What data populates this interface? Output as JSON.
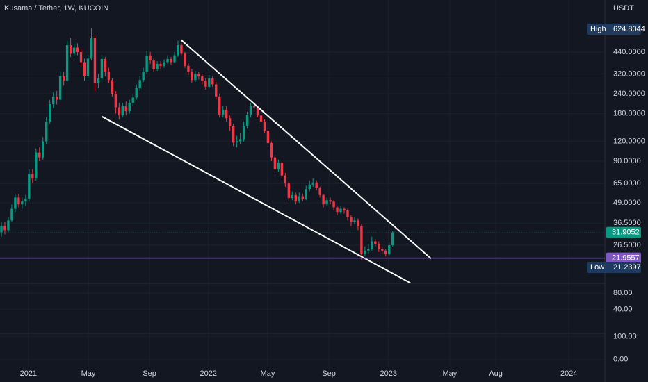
{
  "chart_data": {
    "type": "candlestick",
    "title": "Kusama / Tether, 1W, KUCOIN",
    "currency": "USDT",
    "log_scale": true,
    "grid": true,
    "up_color": "#089981",
    "down_color": "#f23645",
    "open": [
      32,
      35,
      33,
      38,
      45,
      53,
      48,
      50,
      52,
      75,
      70,
      102,
      95,
      120,
      160,
      206,
      230,
      220,
      309,
      290,
      487,
      430,
      470,
      440,
      380,
      309,
      400,
      539,
      279,
      300,
      398,
      330,
      293,
      240,
      197,
      175,
      200,
      186,
      210,
      227,
      260,
      293,
      330,
      419,
      390,
      342,
      370,
      360,
      380,
      398,
      380,
      420,
      487,
      430,
      360,
      330,
      293,
      320,
      309,
      290,
      266,
      300,
      275,
      230,
      177,
      190,
      168,
      150,
      118,
      120,
      124,
      150,
      177,
      200,
      197,
      175,
      160,
      140,
      117,
      95,
      80,
      88,
      73,
      65,
      52.7,
      55,
      50,
      54,
      52,
      60,
      64,
      66,
      61,
      55,
      48,
      51,
      50,
      46,
      43,
      45,
      44,
      40,
      37,
      38,
      35,
      23.2,
      24.5,
      25,
      28,
      27,
      25,
      24.5,
      23.2,
      26.5
    ],
    "high": [
      37,
      37,
      40,
      48,
      56,
      56,
      53,
      55,
      80,
      80,
      108,
      110,
      128,
      170,
      220,
      245,
      250,
      330,
      330,
      520,
      540,
      500,
      500,
      460,
      400,
      420,
      624.8044,
      560,
      320,
      420,
      410,
      350,
      300,
      250,
      210,
      210,
      215,
      220,
      240,
      275,
      310,
      350,
      450,
      440,
      400,
      385,
      385,
      395,
      420,
      410,
      440,
      520,
      500,
      440,
      375,
      345,
      335,
      330,
      320,
      300,
      315,
      310,
      285,
      240,
      200,
      200,
      175,
      155,
      130,
      135,
      160,
      185,
      210,
      215,
      200,
      180,
      165,
      145,
      120,
      98,
      92,
      90,
      76,
      67,
      58,
      57,
      57,
      56,
      63,
      68,
      70,
      68,
      62,
      56,
      53,
      53,
      51,
      47,
      47,
      46,
      45,
      41,
      40,
      39,
      36,
      26,
      27,
      30,
      29,
      28,
      26,
      25,
      27.5,
      32.5
    ],
    "low": [
      30,
      31,
      32,
      37,
      43,
      46,
      45,
      47,
      50,
      65,
      68,
      90,
      92,
      115,
      155,
      195,
      205,
      215,
      270,
      285,
      410,
      415,
      420,
      360,
      290,
      300,
      390,
      250,
      260,
      290,
      310,
      280,
      230,
      180,
      165,
      170,
      175,
      180,
      200,
      220,
      250,
      285,
      320,
      370,
      330,
      335,
      345,
      350,
      370,
      365,
      375,
      410,
      420,
      350,
      315,
      280,
      285,
      295,
      275,
      255,
      260,
      265,
      220,
      170,
      170,
      160,
      140,
      112,
      110,
      115,
      120,
      145,
      170,
      185,
      170,
      150,
      135,
      110,
      90,
      76,
      77,
      70,
      62,
      50,
      51,
      48,
      49,
      50,
      51,
      58,
      62,
      59,
      53,
      46,
      47,
      48,
      44,
      41,
      42,
      42,
      38,
      35,
      36,
      33,
      21.2397,
      22.5,
      23.5,
      24.5,
      26,
      24,
      23.5,
      22.5,
      22.8,
      26
    ],
    "close": [
      35,
      33,
      38,
      45,
      53,
      48,
      50,
      52,
      75,
      70,
      102,
      95,
      120,
      160,
      206,
      230,
      220,
      309,
      290,
      487,
      430,
      470,
      440,
      380,
      309,
      400,
      539,
      279,
      300,
      398,
      330,
      293,
      240,
      197,
      175,
      200,
      186,
      210,
      227,
      260,
      293,
      330,
      419,
      390,
      342,
      370,
      360,
      380,
      398,
      380,
      420,
      487,
      430,
      360,
      330,
      293,
      320,
      309,
      290,
      266,
      300,
      275,
      230,
      177,
      190,
      168,
      150,
      118,
      120,
      124,
      150,
      177,
      200,
      197,
      175,
      160,
      140,
      117,
      95,
      80,
      88,
      73,
      65,
      52.7,
      55,
      50,
      54,
      52,
      60,
      64,
      66,
      61,
      55,
      48,
      51,
      50,
      46,
      43,
      45,
      44,
      40,
      37,
      38,
      35,
      23.2,
      24.5,
      25,
      28,
      27,
      25,
      24.5,
      23.2,
      26.5,
      31.9052
    ],
    "high_label": "High",
    "low_label": "Low",
    "high_index": 26,
    "low_index": 104,
    "hline": {
      "value": 21.9557,
      "color": "#7e57c2"
    },
    "trendlines": [
      {
        "x": [
          51.8,
          124.1
        ],
        "y": [
          528,
          21.8
        ]
      },
      {
        "x": [
          29.1,
          118.1
        ],
        "y": [
          172,
          15.3
        ]
      }
    ],
    "xlim": [
      -0.4,
      174.3
    ],
    "xticks": [
      {
        "value": 7.8,
        "label": "2021"
      },
      {
        "value": 25.1,
        "label": "May"
      },
      {
        "value": 42.8,
        "label": "Sep"
      },
      {
        "value": 59.8,
        "label": "2022"
      },
      {
        "value": 76.9,
        "label": "May"
      },
      {
        "value": 94.6,
        "label": "Sep"
      },
      {
        "value": 111.8,
        "label": "2023"
      },
      {
        "value": 129.5,
        "label": "May"
      },
      {
        "value": 142.8,
        "label": "Aug"
      },
      {
        "value": 163.9,
        "label": "2024"
      }
    ],
    "ylim": [
      15.2,
      939
    ],
    "yticks": [
      {
        "value": 440,
        "label": "440.0000"
      },
      {
        "value": 320,
        "label": "320.0000"
      },
      {
        "value": 240,
        "label": "240.0000"
      },
      {
        "value": 180,
        "label": "180.0000"
      },
      {
        "value": 120,
        "label": "120.0000"
      },
      {
        "value": 90,
        "label": "90.0000"
      },
      {
        "value": 65,
        "label": "65.0000"
      },
      {
        "value": 49,
        "label": "49.0000"
      },
      {
        "value": 36.5,
        "label": "36.5000"
      },
      {
        "value": 26.5,
        "label": "26.5000"
      }
    ],
    "panes": [
      {
        "ylim": [
          -20,
          104.7
        ],
        "yticks": [
          {
            "value": 80,
            "label": "80.00"
          },
          {
            "value": 40,
            "label": "40.00"
          }
        ]
      },
      {
        "ylim": [
          -30.6,
          113.9
        ],
        "yticks": [
          {
            "value": 100,
            "label": "100.00"
          },
          {
            "value": 0,
            "label": "0.00"
          }
        ]
      }
    ]
  }
}
